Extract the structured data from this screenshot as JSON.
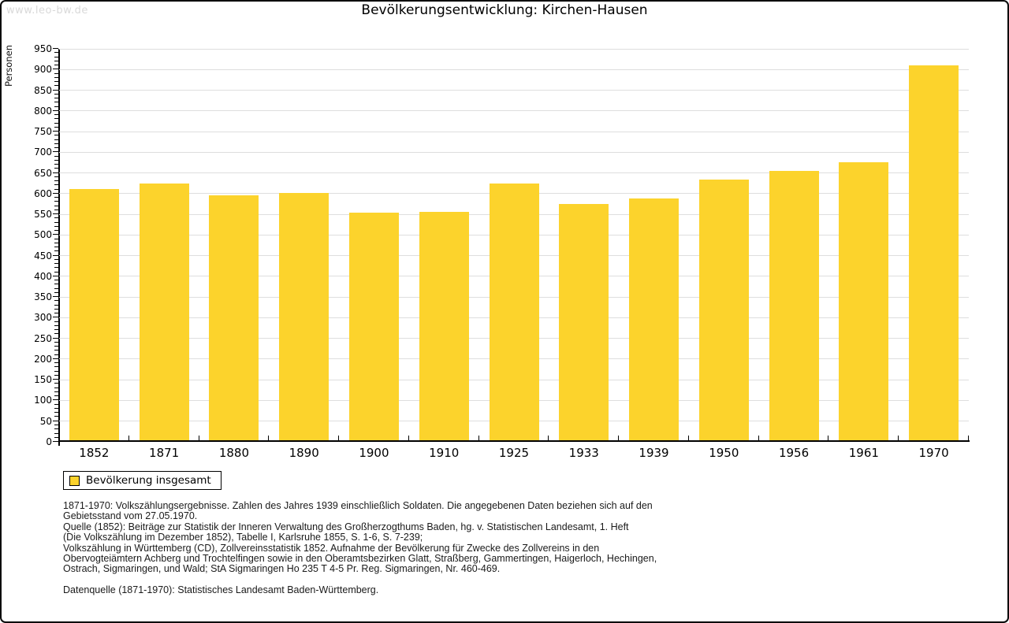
{
  "watermark": "www.leo-bw.de",
  "chart_data": {
    "type": "bar",
    "title": "Bevölkerungsentwicklung: Kirchen-Hausen",
    "xlabel": "",
    "ylabel": "Personen",
    "categories": [
      "1852",
      "1871",
      "1880",
      "1890",
      "1900",
      "1910",
      "1925",
      "1933",
      "1939",
      "1950",
      "1956",
      "1961",
      "1970"
    ],
    "values": [
      608,
      620,
      592,
      598,
      550,
      552,
      620,
      572,
      585,
      630,
      652,
      672,
      907
    ],
    "series_name": "Bevölkerung insgesamt",
    "ylim": [
      0,
      950
    ],
    "y_ticks": [
      0,
      50,
      100,
      150,
      200,
      250,
      300,
      350,
      400,
      450,
      500,
      550,
      600,
      650,
      700,
      750,
      800,
      850,
      900,
      950
    ],
    "y_minor_tick_step": 10,
    "grid": "horizontal",
    "legend_position": "bottom-left"
  },
  "legend": {
    "label": "Bevölkerung insgesamt"
  },
  "colors": {
    "bar": "#FCD32C",
    "gridline": "#DEDEDE",
    "axis": "#000000",
    "watermark": "#D9D9D9"
  },
  "footnotes": {
    "lines": [
      "1871-1970: Volkszählungsergebnisse. Zahlen des Jahres 1939 einschließlich Soldaten. Die angegebenen Daten beziehen sich auf den",
      "Gebietsstand vom 27.05.1970.",
      "Quelle (1852): Beiträge zur Statistik der Inneren Verwaltung des Großherzogthums Baden, hg. v. Statistischen Landesamt, 1. Heft",
      "(Die Volkszählung im Dezember 1852), Tabelle I, Karlsruhe 1855, S. 1-6, S. 7-239;",
      "Volkszählung in Württemberg (CD), Zollvereinsstatistik 1852. Aufnahme der Bevölkerung für Zwecke des Zollvereins in den",
      "Obervogteiämtern Achberg und Trochtelfingen sowie in den Oberamtsbezirken Glatt, Straßberg, Gammertingen, Haigerloch, Hechingen,",
      "Ostrach, Sigmaringen, und Wald; StA Sigmaringen Ho 235 T 4-5 Pr. Reg. Sigmaringen, Nr. 460-469."
    ],
    "datasource": "Datenquelle (1871-1970): Statistisches Landesamt Baden-Württemberg."
  }
}
